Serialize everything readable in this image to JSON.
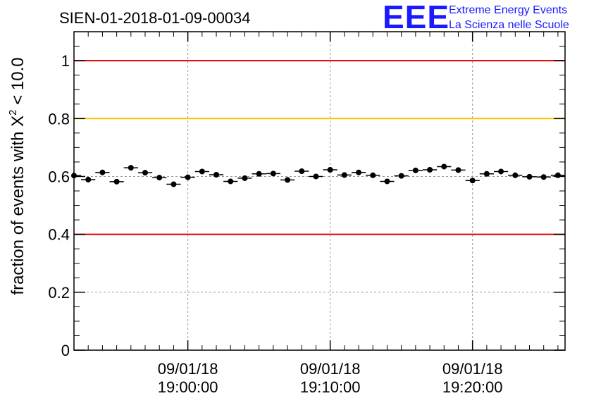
{
  "chart_data": {
    "type": "scatter",
    "title": "SIEN-01-2018-01-09-00034",
    "ylabel_prefix": "fraction of events with ",
    "ylabel_symbol": "X",
    "ylabel_sup": "2",
    "ylabel_suffix": " < 10.0",
    "ylim": [
      0,
      1.1
    ],
    "y_ticks": [
      {
        "value": 0,
        "label": "0"
      },
      {
        "value": 0.2,
        "label": "0.2"
      },
      {
        "value": 0.4,
        "label": "0.4"
      },
      {
        "value": 0.6,
        "label": "0.6"
      },
      {
        "value": 0.8,
        "label": "0.8"
      },
      {
        "value": 1,
        "label": "1"
      }
    ],
    "xlim_minutes": [
      -8,
      26.5
    ],
    "x_ticks": [
      {
        "minute": 0,
        "date": "09/01/18",
        "time": "19:00:00"
      },
      {
        "minute": 10,
        "date": "09/01/18",
        "time": "19:10:00"
      },
      {
        "minute": 20,
        "date": "09/01/18",
        "time": "19:20:00"
      }
    ],
    "x_minor_tick_minutes": [
      -7,
      -6,
      -5,
      -4,
      -3,
      -2,
      -1,
      1,
      2,
      3,
      4,
      5,
      6,
      7,
      8,
      9,
      11,
      12,
      13,
      14,
      15,
      16,
      17,
      18,
      19,
      21,
      22,
      23,
      24,
      25,
      26
    ],
    "grid": true,
    "reference_lines": [
      {
        "value": 1.0,
        "color": "#e00000"
      },
      {
        "value": 0.8,
        "color": "#ffc000"
      },
      {
        "value": 0.4,
        "color": "#e00000"
      }
    ],
    "bin_width_minutes": 1,
    "x_minutes": [
      -8,
      -7,
      -6,
      -5,
      -4,
      -3,
      -2,
      -1,
      0,
      1,
      2,
      3,
      4,
      5,
      6,
      7,
      8,
      9,
      10,
      11,
      12,
      13,
      14,
      15,
      16,
      17,
      18,
      19,
      20,
      21,
      22,
      23,
      24,
      25,
      26
    ],
    "values": [
      0.603,
      0.589,
      0.614,
      0.582,
      0.63,
      0.613,
      0.596,
      0.573,
      0.597,
      0.617,
      0.606,
      0.583,
      0.594,
      0.609,
      0.61,
      0.588,
      0.618,
      0.6,
      0.623,
      0.605,
      0.614,
      0.604,
      0.583,
      0.602,
      0.621,
      0.623,
      0.634,
      0.622,
      0.586,
      0.609,
      0.617,
      0.604,
      0.599,
      0.598,
      0.604
    ],
    "error": 0.009
  },
  "logo": {
    "letters": "EEE",
    "line1": "Extreme Energy Events",
    "line2": "La Scienza nelle Scuole",
    "color": "#1a1aff"
  }
}
